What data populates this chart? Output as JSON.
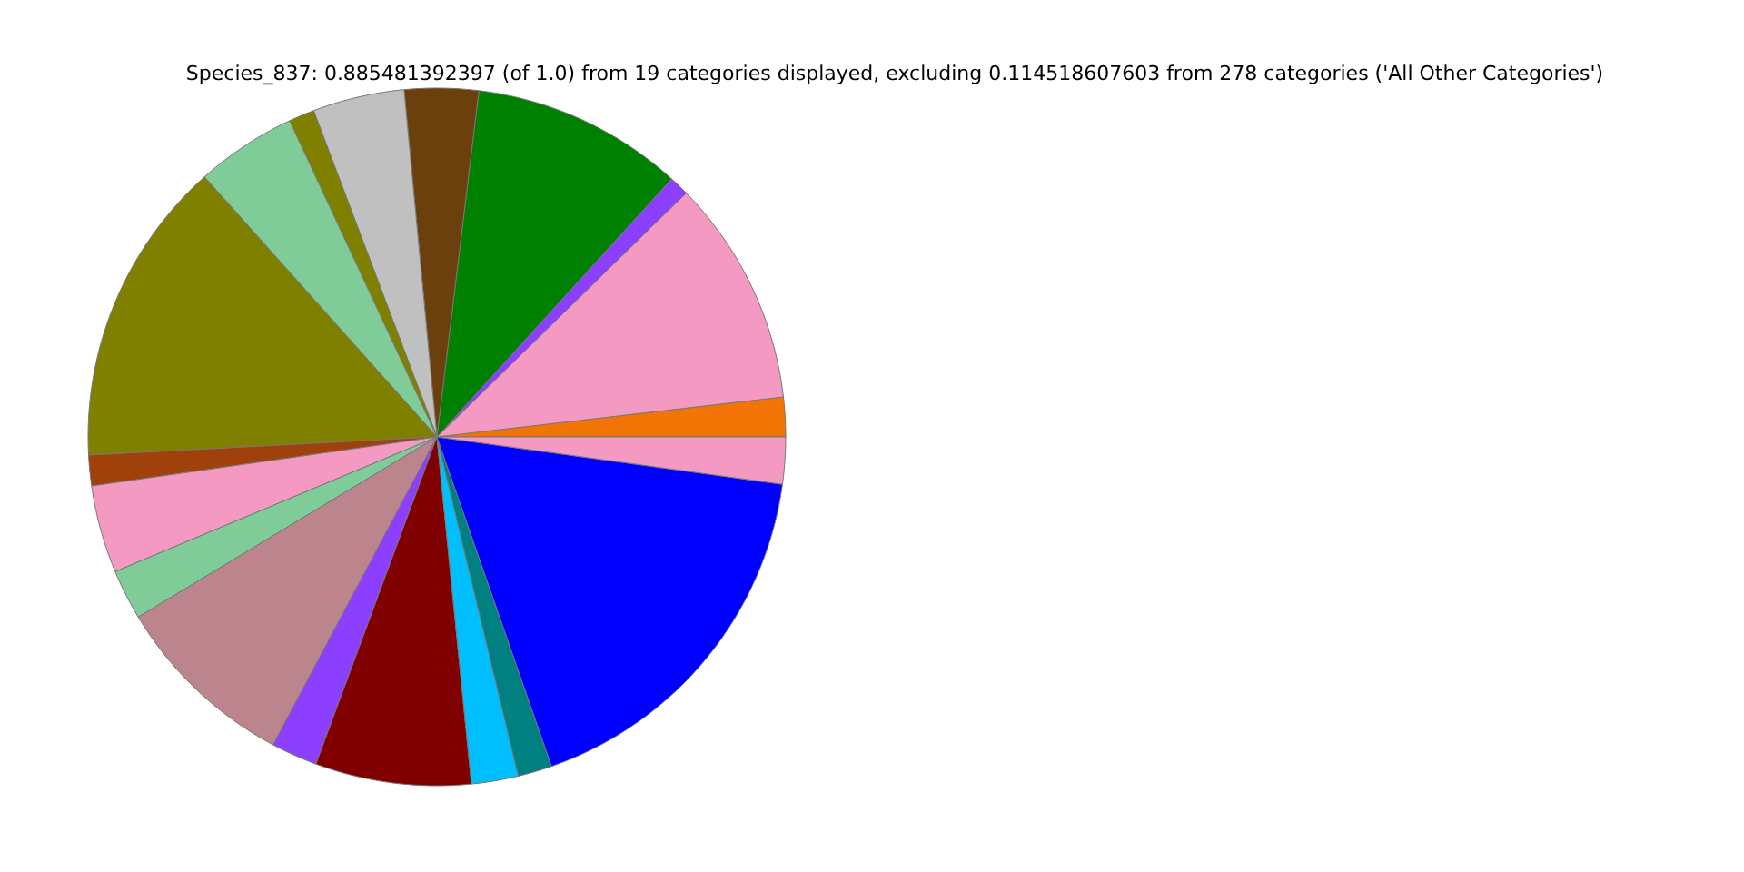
{
  "chart_data": {
    "type": "pie",
    "title": "Species_837: 0.885481392397 (of 1.0) from 19 categories displayed, excluding 0.114518607603 from 278 categories ('All Other Categories')",
    "categories": [
      null,
      null,
      null,
      null,
      null,
      null,
      null,
      null,
      null,
      null,
      null,
      null,
      null,
      null,
      null,
      null,
      null,
      null,
      null
    ],
    "values": [
      1.83,
      10.5,
      0.92,
      9.83,
      3.42,
      4.25,
      1.19,
      4.67,
      14.22,
      1.42,
      4.06,
      2.33,
      8.58,
      2.14,
      7.22,
      2.17,
      1.58,
      17.5,
      2.17
    ],
    "colors": [
      "#f27405",
      "#f49ac2",
      "#8c3fff",
      "#008000",
      "#6b400c",
      "#c0c0c0",
      "#808000",
      "#80cc99",
      "#808000",
      "#a0400a",
      "#f49ac2",
      "#80cc99",
      "#bc848c",
      "#8c3fff",
      "#800000",
      "#00bfff",
      "#008080",
      "#0000ff",
      "#f49ac2"
    ]
  }
}
